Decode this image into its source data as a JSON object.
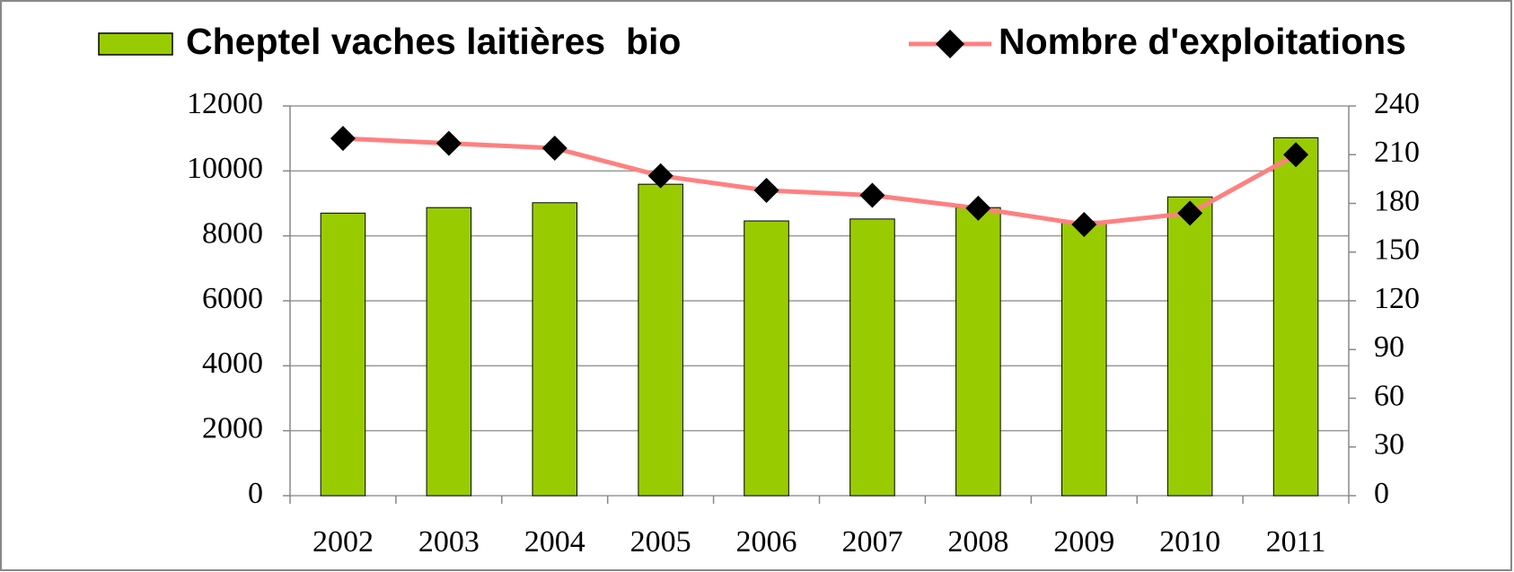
{
  "chart_data": {
    "type": "bar+line",
    "categories": [
      "2002",
      "2003",
      "2004",
      "2005",
      "2006",
      "2007",
      "2008",
      "2009",
      "2010",
      "2011"
    ],
    "series": [
      {
        "name": "Cheptel vaches laitières  bio",
        "type": "bar",
        "color": "#99cc00",
        "values": [
          8700,
          8870,
          9020,
          9590,
          8460,
          8520,
          8870,
          8450,
          9200,
          11020
        ]
      },
      {
        "name": "Nombre d'exploitations",
        "type": "line",
        "axis": "y2",
        "color": "#ff8080",
        "marker_color": "#000000",
        "values": [
          220,
          217,
          214,
          197,
          188,
          185,
          177,
          167,
          174,
          210
        ]
      }
    ],
    "ylim": [
      0,
      12000
    ],
    "yticks": [
      0,
      2000,
      4000,
      6000,
      8000,
      10000,
      12000
    ],
    "y2lim": [
      0,
      240
    ],
    "y2ticks": [
      0,
      30,
      60,
      90,
      120,
      150,
      180,
      210,
      240
    ],
    "grid": true,
    "legend": "top"
  }
}
